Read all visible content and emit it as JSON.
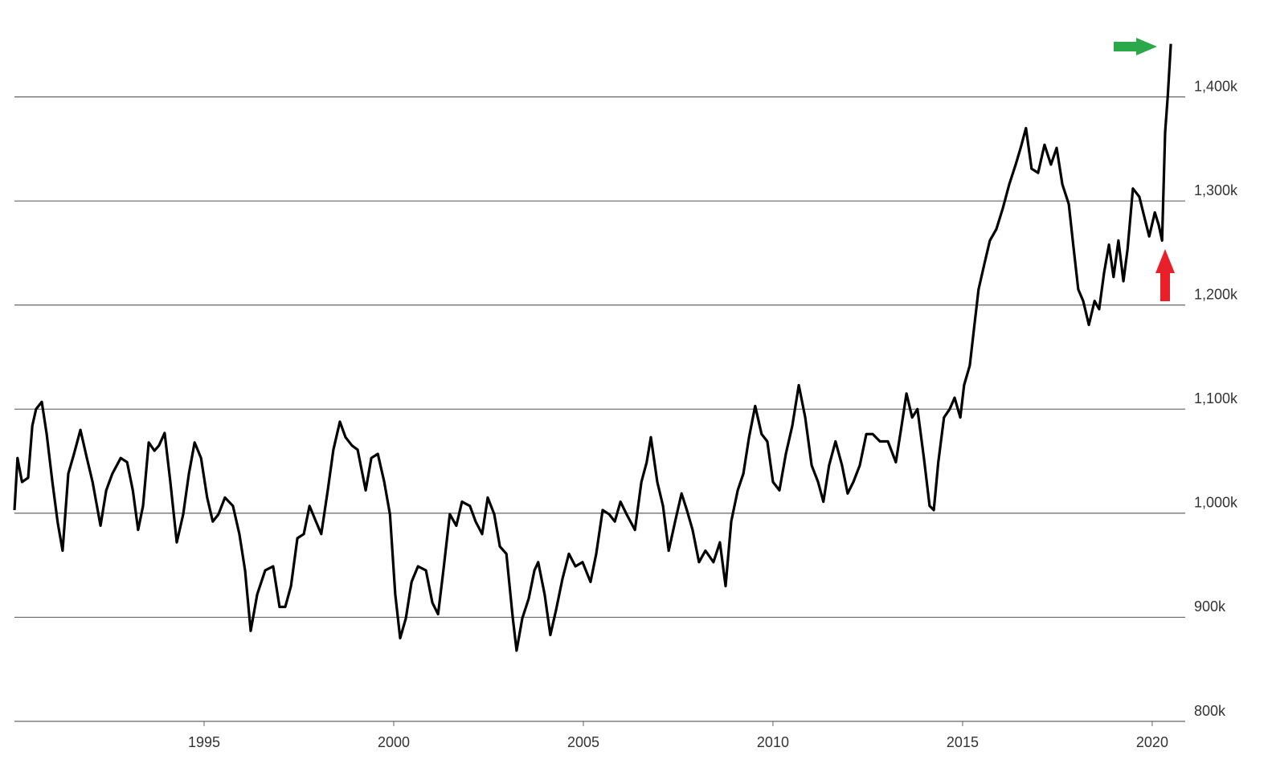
{
  "chart_data": {
    "type": "line",
    "x": [
      1990.0,
      1990.08,
      1990.2,
      1990.36,
      1990.47,
      1990.57,
      1990.72,
      1990.85,
      1991.0,
      1991.14,
      1991.27,
      1991.42,
      1991.57,
      1991.74,
      1991.91,
      1992.06,
      1992.27,
      1992.42,
      1992.58,
      1992.8,
      1992.97,
      1993.12,
      1993.26,
      1993.39,
      1993.54,
      1993.69,
      1993.81,
      1993.96,
      1994.11,
      1994.28,
      1994.45,
      1994.6,
      1994.75,
      1994.92,
      1995.08,
      1995.23,
      1995.38,
      1995.55,
      1995.76,
      1995.93,
      1996.08,
      1996.23,
      1996.4,
      1996.61,
      1996.82,
      1996.99,
      1997.14,
      1997.29,
      1997.46,
      1997.63,
      1997.78,
      1997.95,
      1998.09,
      1998.26,
      1998.41,
      1998.58,
      1998.73,
      1998.9,
      1999.05,
      1999.26,
      1999.41,
      1999.58,
      1999.75,
      1999.9,
      2000.04,
      2000.17,
      2000.32,
      2000.47,
      2000.64,
      2000.85,
      2001.02,
      2001.17,
      2001.31,
      2001.48,
      2001.65,
      2001.8,
      2002.01,
      2002.16,
      2002.33,
      2002.48,
      2002.65,
      2002.8,
      2002.97,
      2003.14,
      2003.24,
      2003.39,
      2003.56,
      2003.71,
      2003.81,
      2003.98,
      2004.13,
      2004.28,
      2004.45,
      2004.62,
      2004.79,
      2004.98,
      2005.19,
      2005.34,
      2005.51,
      2005.68,
      2005.83,
      2005.98,
      2006.14,
      2006.36,
      2006.53,
      2006.67,
      2006.78,
      2006.95,
      2007.1,
      2007.25,
      2007.42,
      2007.59,
      2007.73,
      2007.88,
      2008.05,
      2008.22,
      2008.43,
      2008.6,
      2008.75,
      2008.9,
      2009.07,
      2009.22,
      2009.37,
      2009.53,
      2009.7,
      2009.85,
      2010.0,
      2010.17,
      2010.34,
      2010.51,
      2010.68,
      2010.85,
      2011.02,
      2011.19,
      2011.33,
      2011.48,
      2011.65,
      2011.82,
      2011.97,
      2012.12,
      2012.29,
      2012.46,
      2012.63,
      2012.82,
      2013.03,
      2013.24,
      2013.39,
      2013.52,
      2013.67,
      2013.81,
      2013.98,
      2014.13,
      2014.24,
      2014.36,
      2014.51,
      2014.66,
      2014.79,
      2014.94,
      2015.04,
      2015.19,
      2015.3,
      2015.42,
      2015.57,
      2015.72,
      2015.89,
      2016.06,
      2016.23,
      2016.4,
      2016.53,
      2016.67,
      2016.82,
      2016.99,
      2017.16,
      2017.33,
      2017.48,
      2017.63,
      2017.8,
      2017.93,
      2018.05,
      2018.18,
      2018.33,
      2018.48,
      2018.6,
      2018.73,
      2018.86,
      2018.98,
      2019.11,
      2019.24,
      2019.35,
      2019.49,
      2019.66,
      2019.79,
      2019.92,
      2020.07,
      2020.17,
      2020.26,
      2020.34,
      2020.41,
      2020.49
    ],
    "series": [
      {
        "color": "#000000",
        "values": [
          1003000,
          1053000,
          1030000,
          1034000,
          1084000,
          1100000,
          1107000,
          1076000,
          1030000,
          991000,
          964000,
          1038000,
          1057000,
          1080000,
          1053000,
          1030000,
          988000,
          1022000,
          1038000,
          1053000,
          1049000,
          1022000,
          984000,
          1007000,
          1068000,
          1060000,
          1065000,
          1077000,
          1030000,
          972000,
          999000,
          1038000,
          1068000,
          1053000,
          1015000,
          992000,
          999000,
          1015000,
          1007000,
          980000,
          945000,
          887000,
          922000,
          945000,
          949000,
          910000,
          910000,
          930000,
          976000,
          980000,
          1007000,
          992000,
          980000,
          1022000,
          1061000,
          1088000,
          1073000,
          1065000,
          1061000,
          1022000,
          1053000,
          1057000,
          1030000,
          999000,
          922000,
          880000,
          899000,
          934000,
          949000,
          945000,
          914000,
          903000,
          945000,
          999000,
          988000,
          1011000,
          1007000,
          992000,
          980000,
          1015000,
          999000,
          968000,
          961000,
          899000,
          868000,
          899000,
          918000,
          945000,
          953000,
          922000,
          883000,
          907000,
          937000,
          961000,
          949000,
          953000,
          934000,
          961000,
          1003000,
          999000,
          992000,
          1011000,
          999000,
          984000,
          1030000,
          1049000,
          1073000,
          1030000,
          1007000,
          964000,
          992000,
          1019000,
          1003000,
          984000,
          953000,
          964000,
          953000,
          972000,
          930000,
          992000,
          1022000,
          1038000,
          1073000,
          1103000,
          1076000,
          1069000,
          1030000,
          1022000,
          1057000,
          1084000,
          1123000,
          1092000,
          1046000,
          1030000,
          1011000,
          1046000,
          1069000,
          1046000,
          1019000,
          1030000,
          1046000,
          1076000,
          1076000,
          1069000,
          1069000,
          1049000,
          1084000,
          1115000,
          1092000,
          1100000,
          1053000,
          1007000,
          1003000,
          1049000,
          1092000,
          1100000,
          1111000,
          1092000,
          1123000,
          1142000,
          1177000,
          1215000,
          1239000,
          1262000,
          1273000,
          1293000,
          1316000,
          1335000,
          1351000,
          1370000,
          1331000,
          1327000,
          1354000,
          1335000,
          1351000,
          1316000,
          1297000,
          1254000,
          1215000,
          1204000,
          1181000,
          1204000,
          1196000,
          1231000,
          1258000,
          1227000,
          1262000,
          1223000,
          1254000,
          1312000,
          1304000,
          1285000,
          1266000,
          1289000,
          1277000,
          1262000,
          1366000,
          1401000,
          1451000
        ]
      }
    ],
    "xlim": [
      1990,
      2020.87
    ],
    "xticks": [
      1995,
      2000,
      2005,
      2010,
      2015,
      2020
    ],
    "ylim": [
      800000,
      1480000
    ],
    "yticks": [
      {
        "value": 800000,
        "label": "800k"
      },
      {
        "value": 900000,
        "label": "900k"
      },
      {
        "value": 1000000,
        "label": "1,000k"
      },
      {
        "value": 1100000,
        "label": "1,100k"
      },
      {
        "value": 1200000,
        "label": "1,200k"
      },
      {
        "value": 1300000,
        "label": "1,300k"
      },
      {
        "value": 1400000,
        "label": "1,400k"
      }
    ],
    "grid": true
  }
}
